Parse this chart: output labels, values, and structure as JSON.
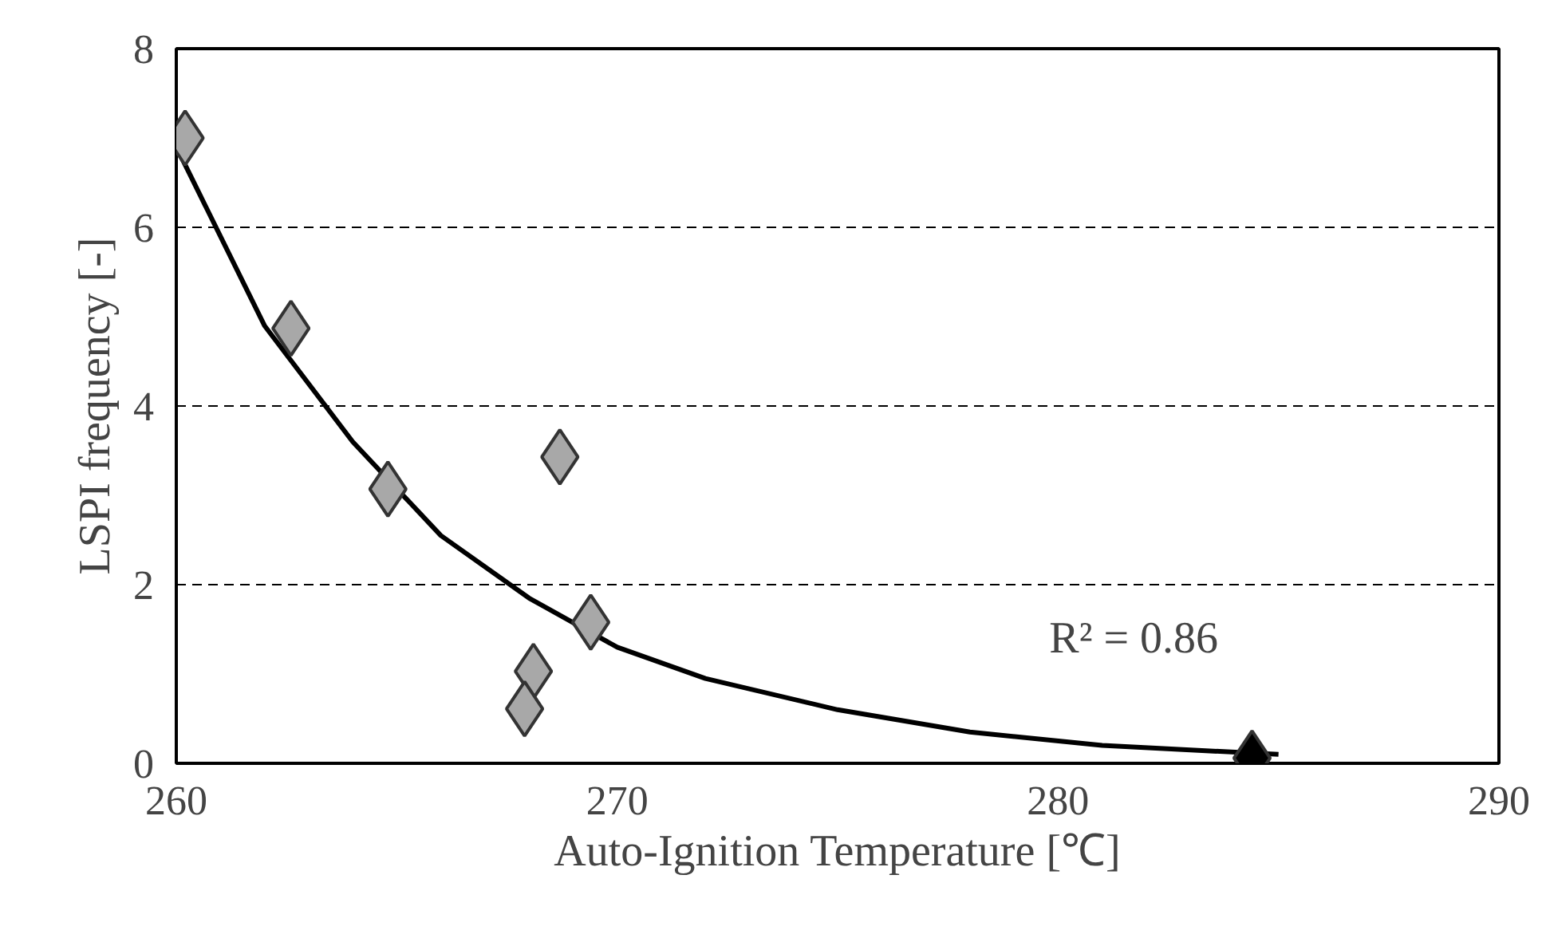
{
  "chart_data": {
    "type": "scatter",
    "xlabel": "Auto-Ignition Temperature [℃]",
    "ylabel": "LSPI frequency [-]",
    "xlim": [
      260,
      290
    ],
    "ylim": [
      0,
      8
    ],
    "xticks": [
      260,
      270,
      280,
      290
    ],
    "yticks": [
      0,
      2,
      4,
      6,
      8
    ],
    "grid": "y",
    "series": [
      {
        "marker": "diamond",
        "x": [
          260.2,
          262.6,
          264.8,
          268.7,
          269.4,
          268.1,
          267.9,
          284.4
        ],
        "values": [
          7.0,
          4.87,
          3.07,
          3.43,
          1.58,
          1.03,
          0.61,
          0.06
        ],
        "colors": [
          "#a8a8a8",
          "#a8a8a8",
          "#a8a8a8",
          "#a8a8a8",
          "#a8a8a8",
          "#a8a8a8",
          "#a8a8a8",
          "#000000"
        ]
      },
      {
        "type": "line",
        "marker": "none",
        "color": "#000000",
        "x": [
          260,
          262,
          264,
          266,
          268,
          270,
          272,
          275,
          278,
          281,
          285
        ],
        "values": [
          6.9,
          4.9,
          3.6,
          2.55,
          1.85,
          1.3,
          0.95,
          0.6,
          0.35,
          0.2,
          0.1
        ]
      }
    ],
    "annotations": [
      "R² = 0.86"
    ]
  }
}
